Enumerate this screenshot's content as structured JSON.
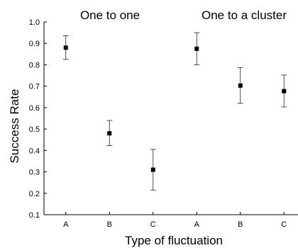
{
  "chart_data": {
    "type": "scatter",
    "title": "",
    "xlabel": "Type of fluctuation",
    "ylabel": "Success Rate",
    "ylim": [
      0.1,
      1.0
    ],
    "yticks": [
      "0.1",
      "0.2",
      "0.3",
      "0.4",
      "0.5",
      "0.6",
      "0.7",
      "0.8",
      "0.9",
      "1.0"
    ],
    "grid": false,
    "groups": [
      {
        "label": "One to one"
      },
      {
        "label": "One to a cluster"
      }
    ],
    "points": [
      {
        "category": "A",
        "group": 0,
        "value": 0.88,
        "err_low": 0.825,
        "err_high": 0.935
      },
      {
        "category": "B",
        "group": 0,
        "value": 0.48,
        "err_low": 0.422,
        "err_high": 0.54
      },
      {
        "category": "C",
        "group": 0,
        "value": 0.31,
        "err_low": 0.215,
        "err_high": 0.405
      },
      {
        "category": "A",
        "group": 1,
        "value": 0.875,
        "err_low": 0.8,
        "err_high": 0.95
      },
      {
        "category": "B",
        "group": 1,
        "value": 0.703,
        "err_low": 0.62,
        "err_high": 0.787
      },
      {
        "category": "C",
        "group": 1,
        "value": 0.677,
        "err_low": 0.603,
        "err_high": 0.752
      }
    ]
  }
}
